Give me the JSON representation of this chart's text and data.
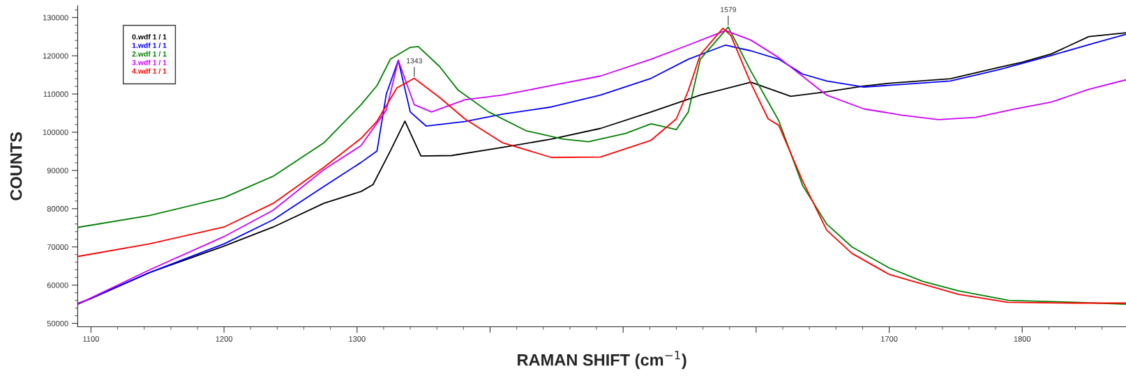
{
  "chart_data": {
    "type": "line",
    "xlabel": "RAMAN SHIFT (cm$^{−1}$)",
    "ylabel": "COUNTS",
    "xlim": [
      1090,
      1878
    ],
    "ylim": [
      49100,
      133100
    ],
    "xticks": [
      1100,
      1200,
      1300,
      {
        "value": 1400,
        "label": null
      },
      {
        "value": 1500,
        "label": null
      },
      {
        "value": 1600,
        "label": null
      },
      1700,
      1800
    ],
    "yticks": [
      50000,
      60000,
      70000,
      80000,
      90000,
      100000,
      110000,
      120000,
      130000
    ],
    "grid": false,
    "legend": "top left",
    "marker": "none",
    "line_style": "solid",
    "annotations": [
      {
        "text": "1343",
        "x": 1343,
        "y": 114100
      },
      {
        "text": "1579",
        "x": 1579,
        "y": 127500
      }
    ],
    "series": [
      {
        "name": "0.wdf 1 / 1",
        "color": "#000000",
        "x": [
          1090,
          1100,
          1144,
          1200,
          1237,
          1275,
          1303,
          1312,
          1325,
          1336,
          1348,
          1371,
          1409,
          1446,
          1483,
          1521,
          1558,
          1596,
          1626,
          1653,
          1681,
          1700,
          1746,
          1783,
          1800,
          1822,
          1850,
          1878
        ],
        "values": [
          55200,
          56500,
          63300,
          70200,
          75200,
          81400,
          84500,
          86300,
          95100,
          102900,
          93800,
          93900,
          96000,
          98200,
          101000,
          105300,
          109700,
          113100,
          109400,
          110600,
          112100,
          112800,
          114000,
          117000,
          118300,
          120500,
          125000,
          126000
        ]
      },
      {
        "name": "1.wdf 1 / 1",
        "color": "#0000ff",
        "x": [
          1090,
          1144,
          1200,
          1237,
          1275,
          1303,
          1315,
          1322,
          1331,
          1340,
          1352,
          1381,
          1409,
          1446,
          1483,
          1521,
          1549,
          1577,
          1596,
          1617,
          1635,
          1653,
          1681,
          1709,
          1746,
          1783,
          1822,
          1858,
          1878
        ],
        "values": [
          55000,
          63300,
          70800,
          77100,
          85800,
          92100,
          95100,
          110000,
          118800,
          105300,
          101600,
          102800,
          104700,
          106600,
          109700,
          114100,
          119100,
          122800,
          121300,
          119100,
          115200,
          113400,
          111800,
          112500,
          113400,
          116400,
          120100,
          123700,
          125600
        ]
      },
      {
        "name": "2.wdf 1 / 1",
        "color": "#008000",
        "x": [
          1090,
          1144,
          1200,
          1237,
          1275,
          1303,
          1315,
          1325,
          1340,
          1346,
          1362,
          1376,
          1399,
          1427,
          1455,
          1474,
          1502,
          1521,
          1540,
          1549,
          1558,
          1579,
          1596,
          1617,
          1635,
          1653,
          1672,
          1700,
          1725,
          1752,
          1790,
          1840,
          1878
        ],
        "values": [
          75100,
          78200,
          82900,
          88500,
          97200,
          107200,
          112200,
          119100,
          122200,
          122400,
          117200,
          111000,
          105300,
          100400,
          98200,
          97500,
          99700,
          102200,
          100700,
          105300,
          119100,
          127500,
          116000,
          103000,
          86000,
          76000,
          70000,
          64500,
          61000,
          58500,
          56000,
          55500,
          55000
        ]
      },
      {
        "name": "3.wdf 1 / 1",
        "color": "#cc00ff",
        "x": [
          1090,
          1144,
          1200,
          1237,
          1275,
          1303,
          1322,
          1331,
          1343,
          1356,
          1381,
          1409,
          1446,
          1483,
          1521,
          1549,
          1577,
          1596,
          1617,
          1635,
          1653,
          1681,
          1709,
          1737,
          1765,
          1795,
          1822,
          1850,
          1878
        ],
        "values": [
          55000,
          64000,
          72700,
          79600,
          90200,
          96500,
          105800,
          118800,
          107200,
          105300,
          108500,
          109700,
          112200,
          114700,
          119100,
          122800,
          126600,
          124100,
          119500,
          114600,
          109700,
          106100,
          104500,
          103300,
          103900,
          106100,
          107900,
          111200,
          113700
        ]
      },
      {
        "name": "4.wdf 1 / 1",
        "color": "#ff0000",
        "x": [
          1090,
          1144,
          1200,
          1237,
          1275,
          1303,
          1315,
          1330,
          1343,
          1362,
          1381,
          1409,
          1446,
          1483,
          1521,
          1540,
          1549,
          1558,
          1575,
          1581,
          1596,
          1609,
          1617,
          1635,
          1653,
          1672,
          1700,
          1752,
          1789,
          1840,
          1878
        ],
        "values": [
          67500,
          70800,
          75200,
          81400,
          90800,
          98400,
          102900,
          111600,
          114100,
          109100,
          103500,
          97300,
          93400,
          93500,
          97900,
          103500,
          110900,
          120300,
          127200,
          125300,
          112800,
          103500,
          101800,
          87200,
          74400,
          68300,
          62800,
          57600,
          55500,
          55300,
          55300
        ]
      }
    ]
  }
}
